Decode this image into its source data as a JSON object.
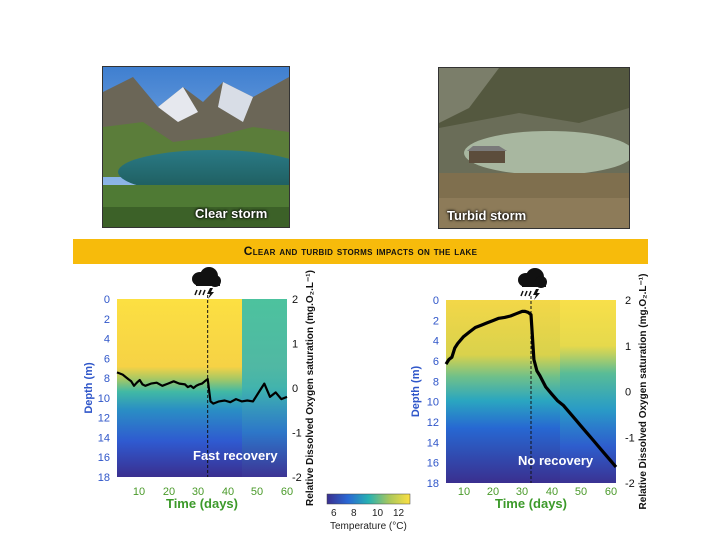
{
  "photos": [
    {
      "label": "Clear storm"
    },
    {
      "label": "Turbid storm"
    }
  ],
  "banner": {
    "title": "Clear and turbid storms impacts on the lake"
  },
  "colorbar": {
    "label": "Temperature (°C)",
    "ticks": [
      "6",
      "8",
      "10",
      "12"
    ]
  },
  "icons": {
    "storm": "storm-cloud-icon"
  },
  "chart_data": [
    {
      "type": "heatmap",
      "name": "clear-storm",
      "annotation": "Fast recovery",
      "xlabel": "Time (days)",
      "ylabel": "Depth (m)",
      "y2label": "Relative Dissolved Oxygen saturation (mg.O₂.L⁻¹)",
      "xlim": [
        0,
        60
      ],
      "ylim": [
        18,
        0
      ],
      "y2lim": [
        -2,
        2
      ],
      "xticks": [
        "10",
        "20",
        "30",
        "40",
        "50",
        "60"
      ],
      "yticks": [
        "0",
        "2",
        "4",
        "6",
        "8",
        "10",
        "12",
        "14",
        "16",
        "18"
      ],
      "y2ticks": [
        "2",
        "1",
        "0",
        "-1",
        "-2"
      ],
      "storm_day": 32,
      "series": [
        {
          "x": [
            0,
            2,
            4,
            5,
            6,
            7,
            8,
            9,
            10,
            12,
            14,
            16,
            18,
            20,
            22,
            24,
            25,
            26,
            27,
            28,
            29,
            30,
            31,
            32,
            33,
            34,
            36,
            38,
            40,
            42,
            44,
            46,
            48,
            50,
            52,
            54,
            56,
            58,
            60
          ],
          "y": [
            0.35,
            0.3,
            0.2,
            0.15,
            0.05,
            0.12,
            0.18,
            0.08,
            0.05,
            0.1,
            0.12,
            0.05,
            0.1,
            0.15,
            0.1,
            0.08,
            0.02,
            0.05,
            0.0,
            0.05,
            0.08,
            0.1,
            0.15,
            0.2,
            -0.3,
            -0.35,
            -0.3,
            -0.28,
            -0.32,
            -0.25,
            -0.3,
            -0.28,
            -0.3,
            -0.1,
            0.1,
            -0.2,
            -0.1,
            -0.25,
            -0.2
          ]
        }
      ]
    },
    {
      "type": "heatmap",
      "name": "turbid-storm",
      "annotation": "No recovery",
      "xlabel": "Time (days)",
      "ylabel": "Depth (m)",
      "y2label": "Relative Dissolved Oxygen saturation (mg.O₂.L⁻¹)",
      "xlim": [
        4,
        62
      ],
      "ylim": [
        18,
        0
      ],
      "y2lim": [
        -2,
        2
      ],
      "xticks": [
        "10",
        "20",
        "30",
        "40",
        "50",
        "60"
      ],
      "yticks": [
        "0",
        "2",
        "4",
        "6",
        "8",
        "10",
        "12",
        "14",
        "16",
        "18"
      ],
      "y2ticks": [
        "2",
        "1",
        "0",
        "-1",
        "-2"
      ],
      "storm_day": 33,
      "series": [
        {
          "x": [
            4,
            5,
            6,
            7,
            8,
            10,
            12,
            14,
            16,
            18,
            20,
            22,
            24,
            26,
            28,
            30,
            31,
            32,
            33,
            34,
            35,
            36,
            38,
            40,
            42,
            44,
            46,
            48,
            50,
            52,
            54,
            56,
            58,
            60,
            62
          ],
          "y": [
            0.6,
            0.7,
            0.75,
            0.95,
            1.05,
            1.2,
            1.3,
            1.4,
            1.45,
            1.5,
            1.55,
            1.6,
            1.62,
            1.65,
            1.7,
            1.75,
            1.75,
            1.73,
            1.68,
            0.7,
            0.45,
            0.35,
            0.1,
            -0.05,
            -0.2,
            -0.3,
            -0.45,
            -0.6,
            -0.75,
            -0.9,
            -1.05,
            -1.2,
            -1.35,
            -1.5,
            -1.65
          ]
        }
      ]
    }
  ]
}
